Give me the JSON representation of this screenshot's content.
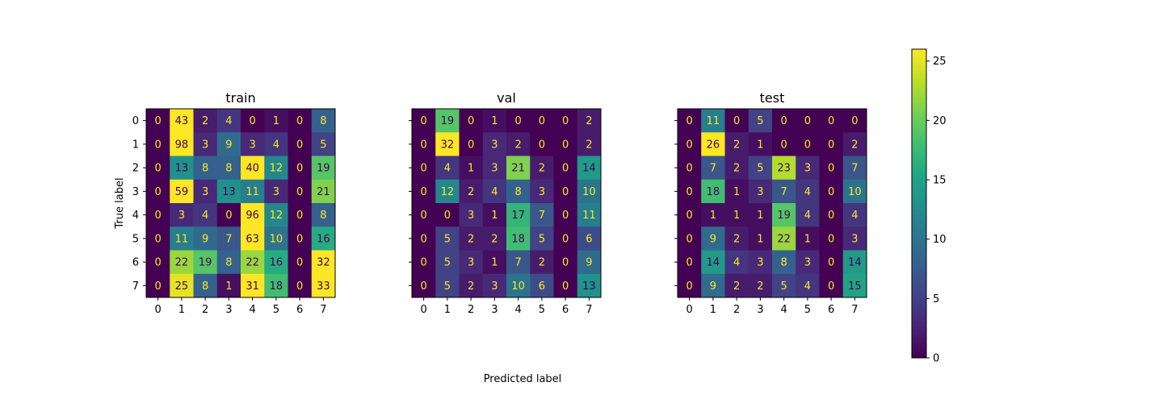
{
  "chart_data": {
    "type": "heatmap",
    "colormap": "viridis",
    "xlabel": "Predicted label",
    "ylabel": "True label",
    "labels": [
      "0",
      "1",
      "2",
      "3",
      "4",
      "5",
      "6",
      "7"
    ],
    "colorbar": {
      "min": 0,
      "max": 26,
      "ticks": [
        0,
        5,
        10,
        15,
        20,
        25
      ],
      "tick_labels": [
        "0",
        "5",
        "10",
        "15",
        "20",
        "25"
      ]
    },
    "panels": [
      {
        "title": "train",
        "matrix": [
          [
            0,
            43,
            2,
            4,
            0,
            1,
            0,
            8
          ],
          [
            0,
            98,
            3,
            9,
            3,
            4,
            0,
            5
          ],
          [
            0,
            13,
            8,
            8,
            40,
            12,
            0,
            19
          ],
          [
            0,
            59,
            3,
            13,
            11,
            3,
            0,
            21
          ],
          [
            0,
            3,
            4,
            0,
            96,
            12,
            0,
            8
          ],
          [
            0,
            11,
            9,
            7,
            63,
            10,
            0,
            16
          ],
          [
            0,
            22,
            19,
            8,
            22,
            16,
            0,
            32
          ],
          [
            0,
            25,
            8,
            1,
            31,
            18,
            0,
            33
          ]
        ]
      },
      {
        "title": "val",
        "matrix": [
          [
            0,
            19,
            0,
            1,
            0,
            0,
            0,
            2
          ],
          [
            0,
            32,
            0,
            3,
            2,
            0,
            0,
            2
          ],
          [
            0,
            4,
            1,
            3,
            21,
            2,
            0,
            14
          ],
          [
            0,
            12,
            2,
            4,
            8,
            3,
            0,
            10
          ],
          [
            0,
            0,
            3,
            1,
            17,
            7,
            0,
            11
          ],
          [
            0,
            5,
            2,
            2,
            18,
            5,
            0,
            6
          ],
          [
            0,
            5,
            3,
            1,
            7,
            2,
            0,
            9
          ],
          [
            0,
            5,
            2,
            3,
            10,
            6,
            0,
            13
          ]
        ]
      },
      {
        "title": "test",
        "matrix": [
          [
            0,
            11,
            0,
            5,
            0,
            0,
            0,
            0
          ],
          [
            0,
            26,
            2,
            1,
            0,
            0,
            0,
            2
          ],
          [
            0,
            7,
            2,
            5,
            23,
            3,
            0,
            7
          ],
          [
            0,
            18,
            1,
            3,
            7,
            4,
            0,
            10
          ],
          [
            0,
            1,
            1,
            1,
            19,
            4,
            0,
            4
          ],
          [
            0,
            9,
            2,
            1,
            22,
            1,
            0,
            3
          ],
          [
            0,
            14,
            4,
            3,
            8,
            3,
            0,
            14
          ],
          [
            0,
            9,
            2,
            2,
            5,
            4,
            0,
            15
          ]
        ]
      }
    ]
  }
}
